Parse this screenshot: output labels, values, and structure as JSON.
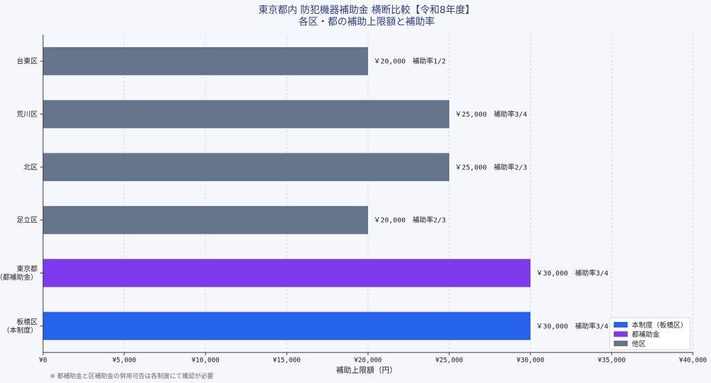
{
  "chart_data": {
    "type": "bar",
    "orientation": "horizontal",
    "title": "東京都内 防犯機器補助金 横断比較【令和8年度】",
    "subtitle": "各区・都の補助上限額と補助率",
    "xlabel": "補助上限額（円）",
    "ylabel": "",
    "xlim": [
      0,
      40000
    ],
    "x_ticks": [
      "¥0",
      "¥5,000",
      "¥10,000",
      "¥15,000",
      "¥20,000",
      "¥25,000",
      "¥30,000",
      "¥35,000",
      "¥40,000"
    ],
    "x_tick_values": [
      0,
      5000,
      10000,
      15000,
      20000,
      25000,
      30000,
      35000,
      40000
    ],
    "grid": "vertical dashed",
    "legend_position": "bottom-right",
    "categories": [
      [
        "台東区"
      ],
      [
        "荒川区"
      ],
      [
        "北区"
      ],
      [
        "足立区"
      ],
      [
        "東京都",
        "（都補助金）"
      ],
      [
        "板橋区",
        "（本制度）"
      ]
    ],
    "values": [
      20000,
      25000,
      25000,
      20000,
      30000,
      30000
    ],
    "bar_groups": [
      "other",
      "other",
      "other",
      "other",
      "tokyo",
      "self"
    ],
    "data_labels": [
      "￥20,000　補助率1/2",
      "￥25,000　補助率3/4",
      "￥25,000　補助率2/3",
      "￥20,000　補助率2/3",
      "￥30,000　補助率3/4",
      "￥30,000　補助率3/4"
    ],
    "legend": [
      {
        "key": "self",
        "label": "本制度（板橋区）",
        "color": "#2563eb"
      },
      {
        "key": "tokyo",
        "label": "都補助金",
        "color": "#7c3aed"
      },
      {
        "key": "other",
        "label": "他区",
        "color": "#64748b"
      }
    ]
  },
  "footnote": "※ 都補助金と区補助金の併用可否は各制度にて確認が必要"
}
